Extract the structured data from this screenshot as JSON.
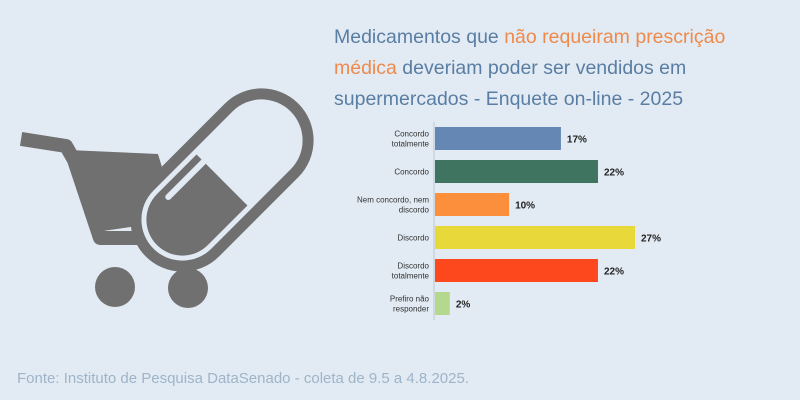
{
  "title": {
    "part1": "Medicamentos que ",
    "highlight": "não requeiram prescrição médica",
    "part2": " deveriam poder ser vendidos em supermercados - Enquete on-line - 2025"
  },
  "illustration": {
    "icons": [
      "shopping-cart-icon",
      "pill-capsule-icon"
    ],
    "color": "#707070"
  },
  "chart_data": {
    "type": "bar",
    "orientation": "horizontal",
    "categories": [
      [
        "Concordo",
        "totalmente"
      ],
      [
        "Concordo"
      ],
      [
        "Nem concordo, nem",
        "discordo"
      ],
      [
        "Discordo"
      ],
      [
        "Discordo",
        "totalmente"
      ],
      [
        "Prefiro não",
        "responder"
      ]
    ],
    "values": [
      17,
      22,
      10,
      27,
      22,
      2
    ],
    "value_labels": [
      "17%",
      "22%",
      "10%",
      "27%",
      "22%",
      "2%"
    ],
    "colors": [
      "#6587b3",
      "#3f7461",
      "#fb8f3c",
      "#e8d83a",
      "#fd471c",
      "#b4d98e"
    ],
    "xlim": [
      0,
      27
    ],
    "grid": false
  },
  "source": "Fonte: Instituto de Pesquisa DataSenado - coleta de 9.5 a 4.8.2025.",
  "colors": {
    "background": "#e2ebf4",
    "title": "#5a7ea3",
    "title_highlight": "#ef8a4a",
    "source": "#9fb4c8"
  }
}
